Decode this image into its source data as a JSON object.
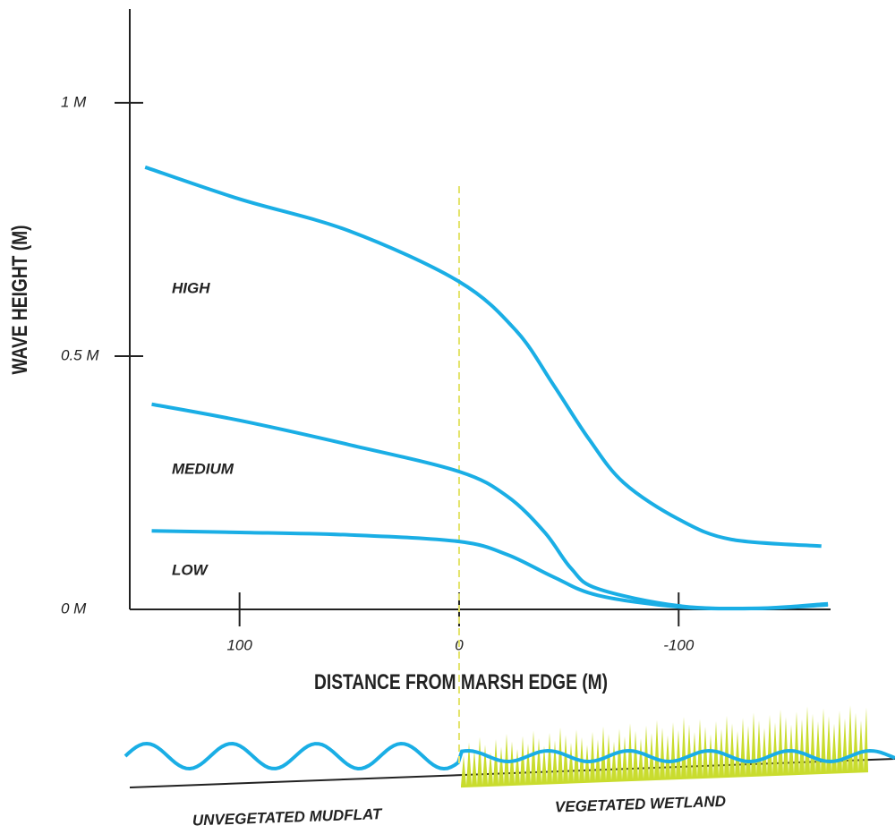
{
  "chart_data": {
    "type": "line",
    "x_label": "DISTANCE FROM MARSH EDGE (M)",
    "y_label": "WAVE HEIGHT (M)",
    "xlim": [
      150,
      -170
    ],
    "ylim": [
      0,
      1.18
    ],
    "xticks": [
      100,
      0,
      -100
    ],
    "yticks": [
      {
        "value": 0,
        "label": "0 M"
      },
      {
        "value": 0.5,
        "label": "0.5 M"
      },
      {
        "value": 1,
        "label": "1 M"
      }
    ],
    "reference_x": 0,
    "series": [
      {
        "name": "HIGH",
        "color": "#1aaee5",
        "x": [
          143,
          100,
          50,
          0,
          -26,
          -43,
          -59,
          -75,
          -100,
          -124,
          -165
        ],
        "values": [
          0.873,
          0.81,
          0.747,
          0.647,
          0.55,
          0.443,
          0.337,
          0.25,
          0.178,
          0.138,
          0.125
        ]
      },
      {
        "name": "MEDIUM",
        "color": "#1aaee5",
        "x": [
          140,
          100,
          50,
          0,
          -22,
          -39,
          -51,
          -63,
          -100,
          -136,
          -168
        ],
        "values": [
          0.405,
          0.373,
          0.325,
          0.272,
          0.223,
          0.152,
          0.081,
          0.041,
          0.007,
          0.002,
          0.009
        ]
      },
      {
        "name": "LOW",
        "color": "#1aaee5",
        "x": [
          140,
          100,
          50,
          0,
          -22,
          -43,
          -63,
          -100,
          -136,
          -168
        ],
        "values": [
          0.155,
          0.152,
          0.147,
          0.134,
          0.108,
          0.064,
          0.028,
          0.005,
          0.002,
          0.011
        ]
      }
    ],
    "annotations": [
      "UNVEGETATED MUDFLAT",
      "VEGETATED WETLAND"
    ]
  }
}
